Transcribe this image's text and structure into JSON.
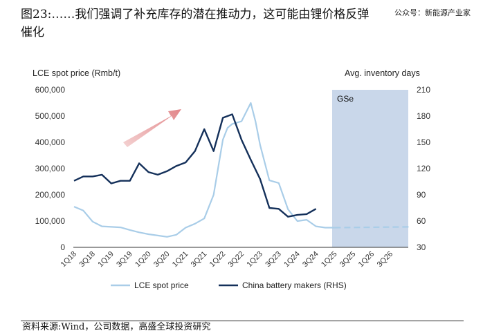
{
  "caption": "图23:……我们强调了补充库存的潜在推动力，这可能由锂价格反弹催化",
  "watermark": "公众号：新能源产业家",
  "source": "资料来源:Wind，公司数据，高盛全球投资研究",
  "chart_data": {
    "type": "line",
    "y_left_label": "LCE spot price (Rmb/t)",
    "y_right_label": "Avg. inventory days",
    "y_left_ticks": [
      "600,000",
      "500,000",
      "400,000",
      "300,000",
      "200,000",
      "100,000",
      "0"
    ],
    "y_right_ticks": [
      "210",
      "180",
      "150",
      "120",
      "90",
      "60",
      "30"
    ],
    "y_left_range": [
      0,
      600000
    ],
    "y_right_range": [
      30,
      210
    ],
    "x_tick_labels": [
      "1Q18",
      "3Q18",
      "1Q19",
      "3Q19",
      "1Q20",
      "3Q20",
      "1Q21",
      "3Q21",
      "1Q22",
      "3Q22",
      "1Q23",
      "3Q23",
      "1Q24",
      "3Q24",
      "1Q25",
      "3Q25",
      "1Q26",
      "3Q26"
    ],
    "shaded_region_label": "GSe",
    "shaded_color": "#c9d7ea",
    "legend_placement": "bottom",
    "series": [
      {
        "name": "LCE spot price",
        "axis": "left",
        "color": "#a9cde8",
        "x": [
          2018.0,
          2018.25,
          2018.5,
          2018.75,
          2019.0,
          2019.25,
          2019.5,
          2019.75,
          2020.0,
          2020.25,
          2020.5,
          2020.75,
          2021.0,
          2021.25,
          2021.5,
          2021.75,
          2022.0,
          2022.125,
          2022.25,
          2022.5,
          2022.75,
          2022.875,
          2023.0,
          2023.25,
          2023.5,
          2023.75,
          2024.0,
          2024.25,
          2024.5,
          2024.75,
          2025.0
        ],
        "values": [
          155000,
          140000,
          98000,
          80000,
          78000,
          76000,
          66000,
          57000,
          50000,
          45000,
          40000,
          48000,
          75000,
          90000,
          110000,
          200000,
          410000,
          455000,
          470000,
          480000,
          550000,
          480000,
          390000,
          255000,
          245000,
          145000,
          100000,
          105000,
          80000,
          75000,
          75000
        ]
      },
      {
        "name": "China battery makers (RHS)",
        "axis": "right",
        "color": "#14305a",
        "x": [
          2018.0,
          2018.25,
          2018.5,
          2018.75,
          2019.0,
          2019.25,
          2019.5,
          2019.75,
          2020.0,
          2020.25,
          2020.5,
          2020.75,
          2021.0,
          2021.25,
          2021.5,
          2021.75,
          2022.0,
          2022.25,
          2022.5,
          2022.75,
          2023.0,
          2023.25,
          2023.5,
          2023.75,
          2024.0,
          2024.25,
          2024.5
        ],
        "values": [
          106,
          111,
          111,
          113,
          103,
          106,
          106,
          126,
          116,
          113,
          117,
          123,
          127,
          140,
          165,
          140,
          178,
          182,
          153,
          130,
          108,
          75,
          74,
          65,
          67,
          68,
          74
        ]
      }
    ],
    "forecast": {
      "name": "LCE spot price forecast",
      "axis": "left",
      "color": "#a9cde8",
      "x": [
        2025.0,
        2027.0
      ],
      "values": [
        75000,
        78000
      ]
    }
  }
}
